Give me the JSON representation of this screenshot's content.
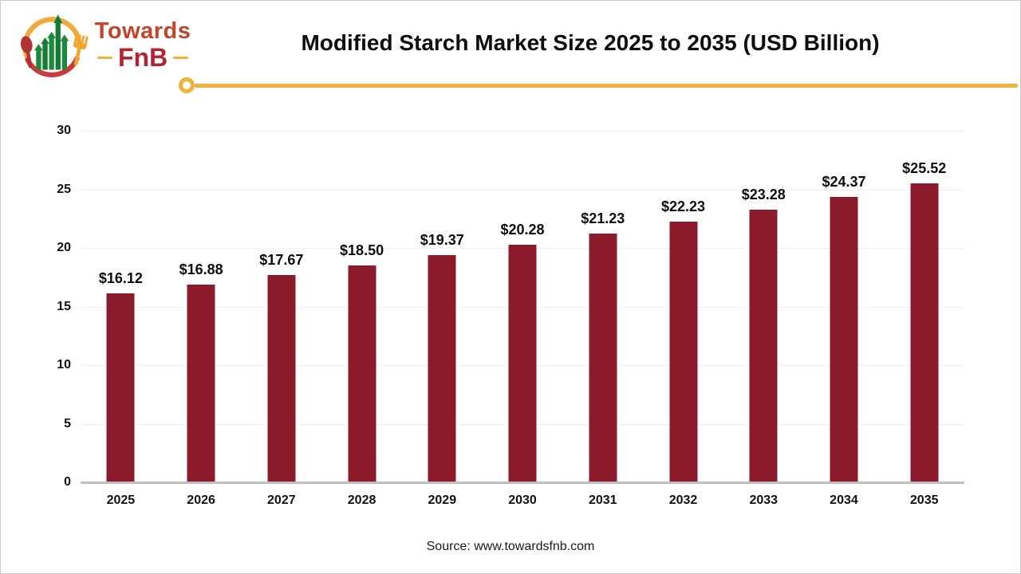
{
  "header": {
    "brand": {
      "line1": "Towards",
      "line2": "FnB"
    }
  },
  "icons": {
    "logo": "towardsfnb-logo-icon (circle of spoon + fork with green growth bars)"
  },
  "colors": {
    "bar": "#8b1b2b",
    "accent_yellow": "#f2b138",
    "brand_red": "#c4432c",
    "brand_crimson": "#b52330",
    "logo_green": "#1b8a3a",
    "gridline": "#f1f1f1",
    "axis_line": "#bfbfbf",
    "title_text": "#0d0d0d"
  },
  "chart_data": {
    "type": "bar",
    "title": "Modified Starch Market Size 2025 to 2035 (USD Billion)",
    "unit": "USD Billion",
    "categories": [
      "2025",
      "2026",
      "2027",
      "2028",
      "2029",
      "2030",
      "2031",
      "2032",
      "2033",
      "2034",
      "2035"
    ],
    "values": [
      16.12,
      16.88,
      17.67,
      18.5,
      19.37,
      20.28,
      21.23,
      22.23,
      23.28,
      24.37,
      25.52
    ],
    "data_labels": [
      "$16.12",
      "$16.88",
      "$17.67",
      "$18.50",
      "$19.37",
      "$20.28",
      "$21.23",
      "$22.23",
      "$23.28",
      "$24.37",
      "$25.52"
    ],
    "xlabel": "",
    "ylabel": "",
    "ylim": [
      0,
      30
    ],
    "yticks": [
      0,
      5,
      10,
      15,
      20,
      25,
      30
    ],
    "grid": true,
    "legend": false,
    "bar_color": "#8b1b2b"
  },
  "footer": {
    "source": "Source: www.towardsfnb.com"
  }
}
